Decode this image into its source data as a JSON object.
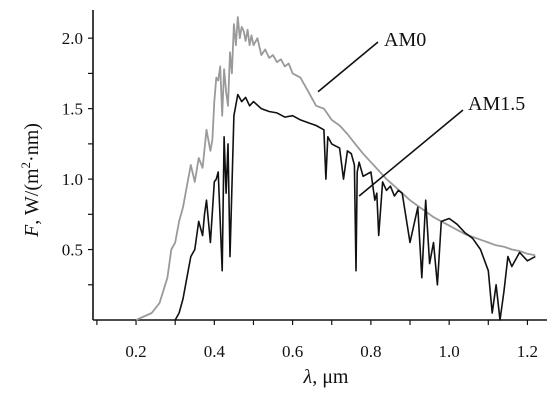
{
  "chart_data": {
    "type": "line",
    "xlabel": {
      "symbol": "λ",
      "text": ", μm"
    },
    "ylabel": {
      "symbol": "F",
      "text": ", W/(m",
      "superscript": "2",
      "tail": "·nm)"
    },
    "xlim": [
      0.09,
      1.25
    ],
    "ylim": [
      0.0,
      2.2
    ],
    "x_ticks": [
      0.2,
      0.4,
      0.6,
      0.8,
      1.0,
      1.2
    ],
    "x_tick_labels": [
      "0.2",
      "0.4",
      "0.6",
      "0.8",
      "1.0",
      "1.2"
    ],
    "y_ticks": [
      0.5,
      1.0,
      1.5,
      2.0
    ],
    "y_tick_labels": [
      "0.5",
      "1.0",
      "1.5",
      "2.0"
    ],
    "grid": false,
    "series": [
      {
        "name": "AM0",
        "color": "#9a9a9a",
        "label_at": [
          0.665,
          1.62
        ],
        "x": [
          0.2,
          0.24,
          0.26,
          0.28,
          0.29,
          0.3,
          0.31,
          0.32,
          0.33,
          0.34,
          0.35,
          0.36,
          0.37,
          0.38,
          0.39,
          0.395,
          0.4,
          0.405,
          0.41,
          0.415,
          0.42,
          0.425,
          0.43,
          0.435,
          0.44,
          0.445,
          0.45,
          0.455,
          0.46,
          0.465,
          0.47,
          0.475,
          0.48,
          0.485,
          0.49,
          0.495,
          0.5,
          0.51,
          0.52,
          0.53,
          0.54,
          0.55,
          0.56,
          0.57,
          0.58,
          0.59,
          0.6,
          0.62,
          0.64,
          0.66,
          0.68,
          0.7,
          0.72,
          0.74,
          0.76,
          0.78,
          0.8,
          0.82,
          0.84,
          0.86,
          0.88,
          0.9,
          0.92,
          0.94,
          0.96,
          0.98,
          1.0,
          1.02,
          1.04,
          1.06,
          1.08,
          1.1,
          1.12,
          1.14,
          1.16,
          1.18,
          1.2,
          1.22
        ],
        "y": [
          0.0,
          0.05,
          0.12,
          0.3,
          0.5,
          0.55,
          0.7,
          0.8,
          0.95,
          1.1,
          0.98,
          1.15,
          1.08,
          1.35,
          1.2,
          1.28,
          1.55,
          1.72,
          1.7,
          1.8,
          1.45,
          1.78,
          1.62,
          1.52,
          1.9,
          1.75,
          2.1,
          1.95,
          2.15,
          2.0,
          2.08,
          2.05,
          1.98,
          2.06,
          1.95,
          2.02,
          1.95,
          2.0,
          1.88,
          1.92,
          1.86,
          1.88,
          1.83,
          1.85,
          1.8,
          1.82,
          1.75,
          1.72,
          1.62,
          1.52,
          1.5,
          1.42,
          1.38,
          1.32,
          1.25,
          1.18,
          1.12,
          1.06,
          1.0,
          0.95,
          0.9,
          0.85,
          0.81,
          0.77,
          0.73,
          0.7,
          0.67,
          0.64,
          0.61,
          0.59,
          0.57,
          0.55,
          0.53,
          0.52,
          0.5,
          0.49,
          0.47,
          0.46
        ]
      },
      {
        "name": "AM1.5",
        "color": "#111111",
        "label_at": [
          0.77,
          0.88
        ],
        "x": [
          0.3,
          0.31,
          0.32,
          0.33,
          0.34,
          0.35,
          0.36,
          0.37,
          0.375,
          0.38,
          0.39,
          0.4,
          0.405,
          0.41,
          0.42,
          0.425,
          0.43,
          0.435,
          0.44,
          0.45,
          0.46,
          0.47,
          0.48,
          0.49,
          0.5,
          0.52,
          0.54,
          0.56,
          0.58,
          0.6,
          0.62,
          0.64,
          0.66,
          0.68,
          0.685,
          0.69,
          0.7,
          0.72,
          0.73,
          0.74,
          0.75,
          0.758,
          0.762,
          0.765,
          0.77,
          0.78,
          0.8,
          0.81,
          0.815,
          0.82,
          0.83,
          0.84,
          0.85,
          0.86,
          0.87,
          0.88,
          0.9,
          0.92,
          0.93,
          0.94,
          0.95,
          0.96,
          0.97,
          0.98,
          1.0,
          1.02,
          1.04,
          1.06,
          1.08,
          1.1,
          1.11,
          1.12,
          1.13,
          1.14,
          1.15,
          1.16,
          1.18,
          1.2,
          1.22
        ],
        "y": [
          0.0,
          0.05,
          0.15,
          0.3,
          0.45,
          0.5,
          0.7,
          0.6,
          0.75,
          0.85,
          0.55,
          0.98,
          1.0,
          1.05,
          0.35,
          1.3,
          0.9,
          1.25,
          0.45,
          1.45,
          1.6,
          1.55,
          1.58,
          1.52,
          1.55,
          1.5,
          1.48,
          1.47,
          1.44,
          1.45,
          1.42,
          1.4,
          1.38,
          1.35,
          1.0,
          1.3,
          1.25,
          1.22,
          1.0,
          1.2,
          1.18,
          1.1,
          0.35,
          1.05,
          1.12,
          1.02,
          1.05,
          0.85,
          0.9,
          0.6,
          0.98,
          0.92,
          0.95,
          0.88,
          0.92,
          0.9,
          0.55,
          0.8,
          0.3,
          0.85,
          0.4,
          0.55,
          0.25,
          0.7,
          0.72,
          0.68,
          0.62,
          0.58,
          0.5,
          0.35,
          0.05,
          0.25,
          0.0,
          0.2,
          0.45,
          0.38,
          0.48,
          0.42,
          0.45
        ]
      }
    ]
  }
}
